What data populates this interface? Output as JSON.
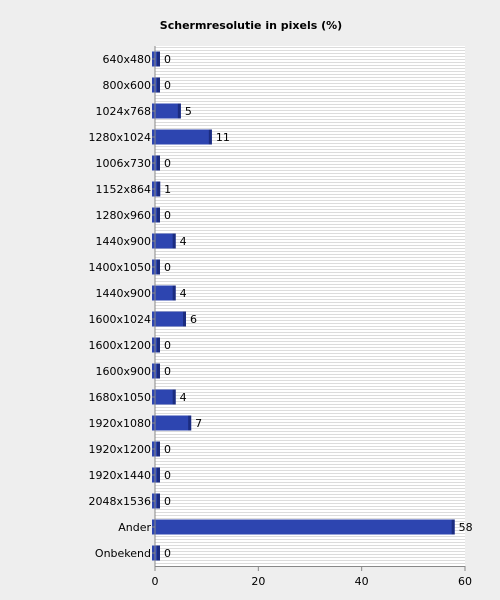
{
  "chart_data": {
    "type": "bar",
    "orientation": "horizontal",
    "title": "Schermresolutie in pixels (%)",
    "xlabel": "",
    "ylabel": "",
    "categories": [
      "640x480",
      "800x600",
      "1024x768",
      "1280x1024",
      "1006x730",
      "1152x864",
      "1280x960",
      "1440x900",
      "1400x1050",
      "1440x900",
      "1600x1024",
      "1600x1200",
      "1600x900",
      "1680x1050",
      "1920x1080",
      "1920x1200",
      "1920x1440",
      "2048x1536",
      "Ander",
      "Onbekend"
    ],
    "values": [
      0,
      0,
      5,
      11,
      0,
      1,
      0,
      4,
      0,
      4,
      6,
      0,
      0,
      4,
      7,
      0,
      0,
      0,
      58,
      0
    ],
    "xlim": [
      0,
      60
    ],
    "xticks": [
      0,
      20,
      40,
      60
    ],
    "grid": "horizontal-stripes",
    "legend": "none",
    "colors": {
      "bar": "#2d45b0",
      "bar_edge": "#1b2c80",
      "plot_bg": "#ffffff",
      "stripe": "#dcdcdc",
      "axis": "#888888"
    }
  }
}
